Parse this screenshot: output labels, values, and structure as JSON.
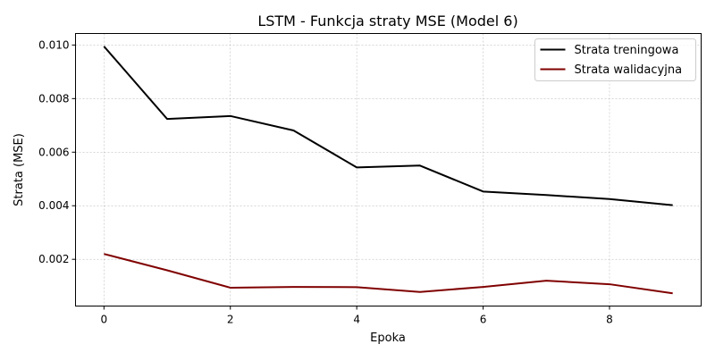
{
  "chart_data": {
    "type": "line",
    "title": "LSTM - Funkcja straty MSE (Model 6)",
    "xlabel": "Epoka",
    "ylabel": "Strata (MSE)",
    "x": [
      0,
      1,
      2,
      3,
      4,
      5,
      6,
      7,
      8,
      9
    ],
    "xlim": [
      -0.45,
      9.45
    ],
    "ylim": [
      0.000255,
      0.01043
    ],
    "xticks": [
      0,
      2,
      4,
      6,
      8
    ],
    "xtick_labels": [
      "0",
      "2",
      "4",
      "6",
      "8"
    ],
    "yticks": [
      0.002,
      0.004,
      0.006,
      0.008,
      0.01
    ],
    "ytick_labels": [
      "0.002",
      "0.004",
      "0.006",
      "0.008",
      "0.010"
    ],
    "grid": true,
    "legend_position": "top-right",
    "series": [
      {
        "name": "Strata treningowa",
        "color": "#000000",
        "values": [
          0.00995,
          0.00724,
          0.00735,
          0.00681,
          0.00543,
          0.0055,
          0.00453,
          0.0044,
          0.00425,
          0.00402
        ]
      },
      {
        "name": "Strata walidacyjna",
        "color": "#800000",
        "values": [
          0.0022,
          0.00159,
          0.00094,
          0.00097,
          0.00096,
          0.00078,
          0.00097,
          0.0012,
          0.00107,
          0.00073
        ]
      }
    ]
  }
}
